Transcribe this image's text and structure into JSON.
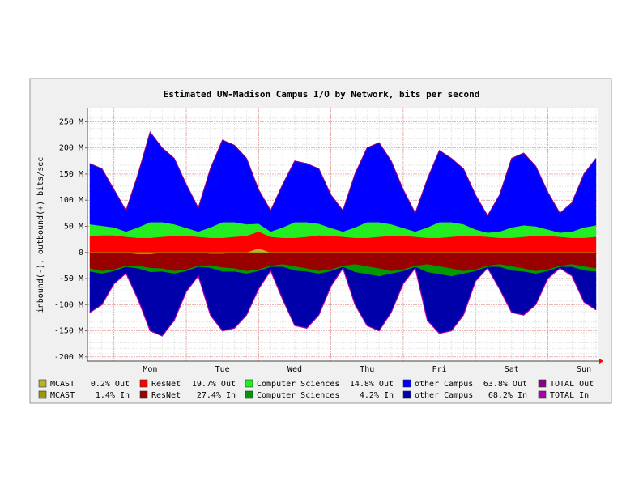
{
  "chart_data": {
    "type": "area",
    "title": "Estimated UW-Madison Campus I/O by Network, bits per second",
    "y_label": "inbound(-), outbound(+) bits/sec",
    "categories": [
      null,
      null,
      null,
      null,
      null,
      "Mon",
      null,
      null,
      null,
      null,
      null,
      "Tue",
      null,
      null,
      null,
      null,
      null,
      "Wed",
      null,
      null,
      null,
      null,
      null,
      "Thu",
      null,
      null,
      null,
      null,
      null,
      "Fri",
      null,
      null,
      null,
      null,
      null,
      "Sat",
      null,
      null,
      null,
      null,
      null,
      "Sun",
      null
    ],
    "ylim": [
      -208,
      277
    ],
    "yticks": [
      {
        "value": 250,
        "label": "250 M"
      },
      {
        "value": 200,
        "label": "200 M"
      },
      {
        "value": 150,
        "label": "150 M"
      },
      {
        "value": 100,
        "label": "100 M"
      },
      {
        "value": 50,
        "label": "50 M"
      },
      0,
      {
        "value": -50,
        "label": "-50 M"
      },
      {
        "value": -100,
        "label": "-100 M"
      },
      {
        "value": -150,
        "label": "-150 M"
      },
      {
        "value": -200,
        "label": "-200 M"
      }
    ],
    "grid": true,
    "series": [
      {
        "name": "MCAST",
        "stat": "0.2% Out",
        "color": "#b5b52a",
        "mark": "area",
        "values": [
          0,
          0,
          0,
          0,
          0,
          0,
          0,
          0,
          0,
          0,
          0,
          0,
          0,
          0,
          8,
          0,
          0,
          0,
          0,
          0,
          0,
          0,
          0,
          0,
          0,
          0,
          0,
          0,
          0,
          0,
          0,
          0,
          0,
          0,
          0,
          0,
          0,
          0,
          0,
          0,
          0,
          0,
          0
        ]
      },
      {
        "name": "ResNet",
        "stat": "19.7% Out",
        "color": "#ff0000",
        "mark": "area",
        "values": [
          32,
          33,
          33,
          30,
          28,
          28,
          30,
          32,
          32,
          30,
          28,
          28,
          30,
          32,
          32,
          30,
          28,
          28,
          30,
          33,
          32,
          30,
          28,
          28,
          30,
          32,
          32,
          30,
          28,
          28,
          30,
          32,
          32,
          30,
          28,
          28,
          30,
          32,
          32,
          30,
          28,
          28,
          30
        ]
      },
      {
        "name": "Computer Sciences",
        "stat": "14.8% Out",
        "color": "#22ee22",
        "mark": "area",
        "values": [
          22,
          18,
          15,
          10,
          20,
          30,
          28,
          22,
          15,
          10,
          20,
          30,
          28,
          22,
          15,
          10,
          20,
          30,
          28,
          22,
          15,
          10,
          20,
          30,
          28,
          22,
          15,
          10,
          20,
          30,
          28,
          22,
          12,
          8,
          12,
          20,
          22,
          18,
          12,
          8,
          12,
          20,
          22
        ]
      },
      {
        "name": "other Campus",
        "stat": "63.8% Out",
        "color": "#0000ff",
        "mark": "area",
        "values": [
          116,
          109,
          72,
          40,
          102,
          172,
          142,
          126,
          83,
          45,
          112,
          157,
          147,
          126,
          65,
          40,
          82,
          117,
          112,
          105,
          63,
          40,
          102,
          142,
          152,
          121,
          73,
          35,
          92,
          137,
          122,
          106,
          66,
          32,
          70,
          132,
          138,
          115,
          71,
          37,
          55,
          102,
          128
        ]
      },
      {
        "name": "TOTAL Out",
        "color": "#880088",
        "mark": "line",
        "values": [
          170,
          160,
          120,
          80,
          150,
          230,
          200,
          180,
          130,
          85,
          160,
          215,
          205,
          180,
          120,
          80,
          130,
          175,
          170,
          160,
          110,
          80,
          150,
          200,
          210,
          175,
          120,
          75,
          140,
          195,
          180,
          160,
          110,
          70,
          110,
          180,
          190,
          165,
          115,
          75,
          95,
          150,
          180
        ]
      },
      {
        "name": "MCAST",
        "stat": "1.4% In",
        "color": "#999900",
        "mark": "area",
        "values": [
          -1,
          -1,
          -1,
          -1,
          -4,
          -4,
          -1,
          -1,
          -1,
          -1,
          -3,
          -3,
          -1,
          -1,
          -1,
          -1,
          -1,
          -1,
          -1,
          -1,
          -1,
          -1,
          -1,
          -1,
          -1,
          -1,
          -1,
          -1,
          -1,
          -1,
          -1,
          -1,
          -1,
          -1,
          -1,
          -1,
          -1,
          -1,
          -1,
          -1,
          -1,
          -1,
          -1
        ]
      },
      {
        "name": "ResNet",
        "stat": "27.4% In",
        "color": "#990000",
        "mark": "area",
        "values": [
          -30,
          -35,
          -32,
          -25,
          -22,
          -26,
          -30,
          -35,
          -32,
          -25,
          -22,
          -26,
          -30,
          -35,
          -32,
          -25,
          -22,
          -26,
          -30,
          -35,
          -32,
          -25,
          -22,
          -26,
          -30,
          -35,
          -32,
          -25,
          -22,
          -26,
          -30,
          -35,
          -32,
          -25,
          -22,
          -26,
          -30,
          -35,
          -32,
          -25,
          -22,
          -26,
          -30
        ]
      },
      {
        "name": "Computer Sciences",
        "stat": "4.2% In",
        "color": "#009900",
        "mark": "area",
        "values": [
          -6,
          -5,
          -3,
          -2,
          -5,
          -8,
          -6,
          -5,
          -3,
          -2,
          -5,
          -8,
          -6,
          -5,
          -3,
          -2,
          -5,
          -8,
          -6,
          -5,
          -3,
          -2,
          -15,
          -15,
          -15,
          -5,
          -3,
          -2,
          -15,
          -15,
          -15,
          -5,
          -3,
          -2,
          -5,
          -8,
          -6,
          -5,
          -3,
          -2,
          -5,
          -8,
          -6
        ]
      },
      {
        "name": "other Campus",
        "stat": "68.2% In",
        "color": "#0000aa",
        "mark": "area",
        "values": [
          -78,
          -59,
          -24,
          -12,
          -59,
          -112,
          -123,
          -89,
          -39,
          -17,
          -90,
          -113,
          -108,
          -79,
          -34,
          -7,
          -62,
          -105,
          -108,
          -79,
          -29,
          -2,
          -62,
          -98,
          -104,
          -74,
          -24,
          -2,
          -92,
          -113,
          -104,
          -79,
          -19,
          -2,
          -42,
          -80,
          -83,
          -59,
          -14,
          -2,
          -17,
          -60,
          -73
        ]
      },
      {
        "name": "TOTAL In",
        "color": "#aa00aa",
        "mark": "line",
        "values": [
          -115,
          -100,
          -60,
          -40,
          -90,
          -150,
          -160,
          -130,
          -75,
          -45,
          -120,
          -150,
          -145,
          -120,
          -70,
          -35,
          -90,
          -140,
          -145,
          -120,
          -65,
          -30,
          -100,
          -140,
          -150,
          -115,
          -60,
          -30,
          -130,
          -155,
          -150,
          -120,
          -55,
          -30,
          -70,
          -115,
          -120,
          -100,
          -50,
          -30,
          -45,
          -95,
          -110
        ]
      }
    ]
  }
}
